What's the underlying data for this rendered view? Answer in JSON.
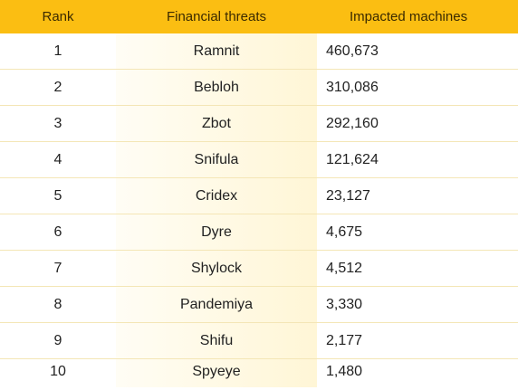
{
  "table": {
    "headers": {
      "rank": "Rank",
      "threat": "Financial threats",
      "machines": "Impacted machines"
    },
    "rows": [
      {
        "rank": "1",
        "threat": "Ramnit",
        "machines": "460,673"
      },
      {
        "rank": "2",
        "threat": "Bebloh",
        "machines": "310,086"
      },
      {
        "rank": "3",
        "threat": "Zbot",
        "machines": "292,160"
      },
      {
        "rank": "4",
        "threat": "Snifula",
        "machines": "121,624"
      },
      {
        "rank": "5",
        "threat": "Cridex",
        "machines": "23,127"
      },
      {
        "rank": "6",
        "threat": "Dyre",
        "machines": "4,675"
      },
      {
        "rank": "7",
        "threat": "Shylock",
        "machines": "4,512"
      },
      {
        "rank": "8",
        "threat": "Pandemiya",
        "machines": "3,330"
      },
      {
        "rank": "9",
        "threat": "Shifu",
        "machines": "2,177"
      },
      {
        "rank": "10",
        "threat": "Spyeye",
        "machines": "1,480"
      }
    ]
  },
  "colors": {
    "header_background": "#fbbe12",
    "highlight_column": "#fff6d6",
    "row_divider": "#f4e6b6"
  }
}
